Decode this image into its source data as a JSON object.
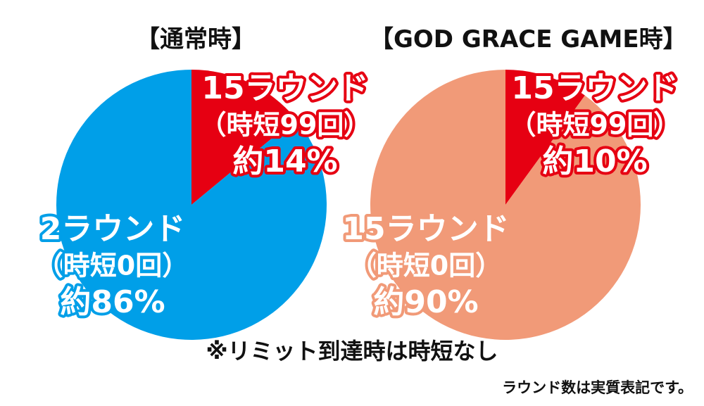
{
  "colors": {
    "normal_small": "#e60012",
    "normal_large": "#009fe8",
    "god_small": "#e60012",
    "god_large": "#f19a78",
    "label_text": "#ffffff"
  },
  "chart_data": [
    {
      "type": "pie",
      "title": "【通常時】",
      "slices": [
        {
          "lines": [
            "15ラウンド",
            "（時短99回）",
            "約14%"
          ],
          "value": 14,
          "color": "#e60012"
        },
        {
          "lines": [
            "2ラウンド",
            "（時短0回）",
            "約86%"
          ],
          "value": 86,
          "color": "#009fe8"
        }
      ]
    },
    {
      "type": "pie",
      "title": "【GOD GRACE GAME時】",
      "slices": [
        {
          "lines": [
            "15ラウンド",
            "（時短99回）",
            "約10%"
          ],
          "value": 10,
          "color": "#e60012"
        },
        {
          "lines": [
            "15ラウンド",
            "（時短0回）",
            "約90%"
          ],
          "value": 90,
          "color": "#f19a78"
        }
      ]
    }
  ],
  "note": "※リミット到達時は時短なし",
  "footnote": "ラウンド数は実質表記です。"
}
